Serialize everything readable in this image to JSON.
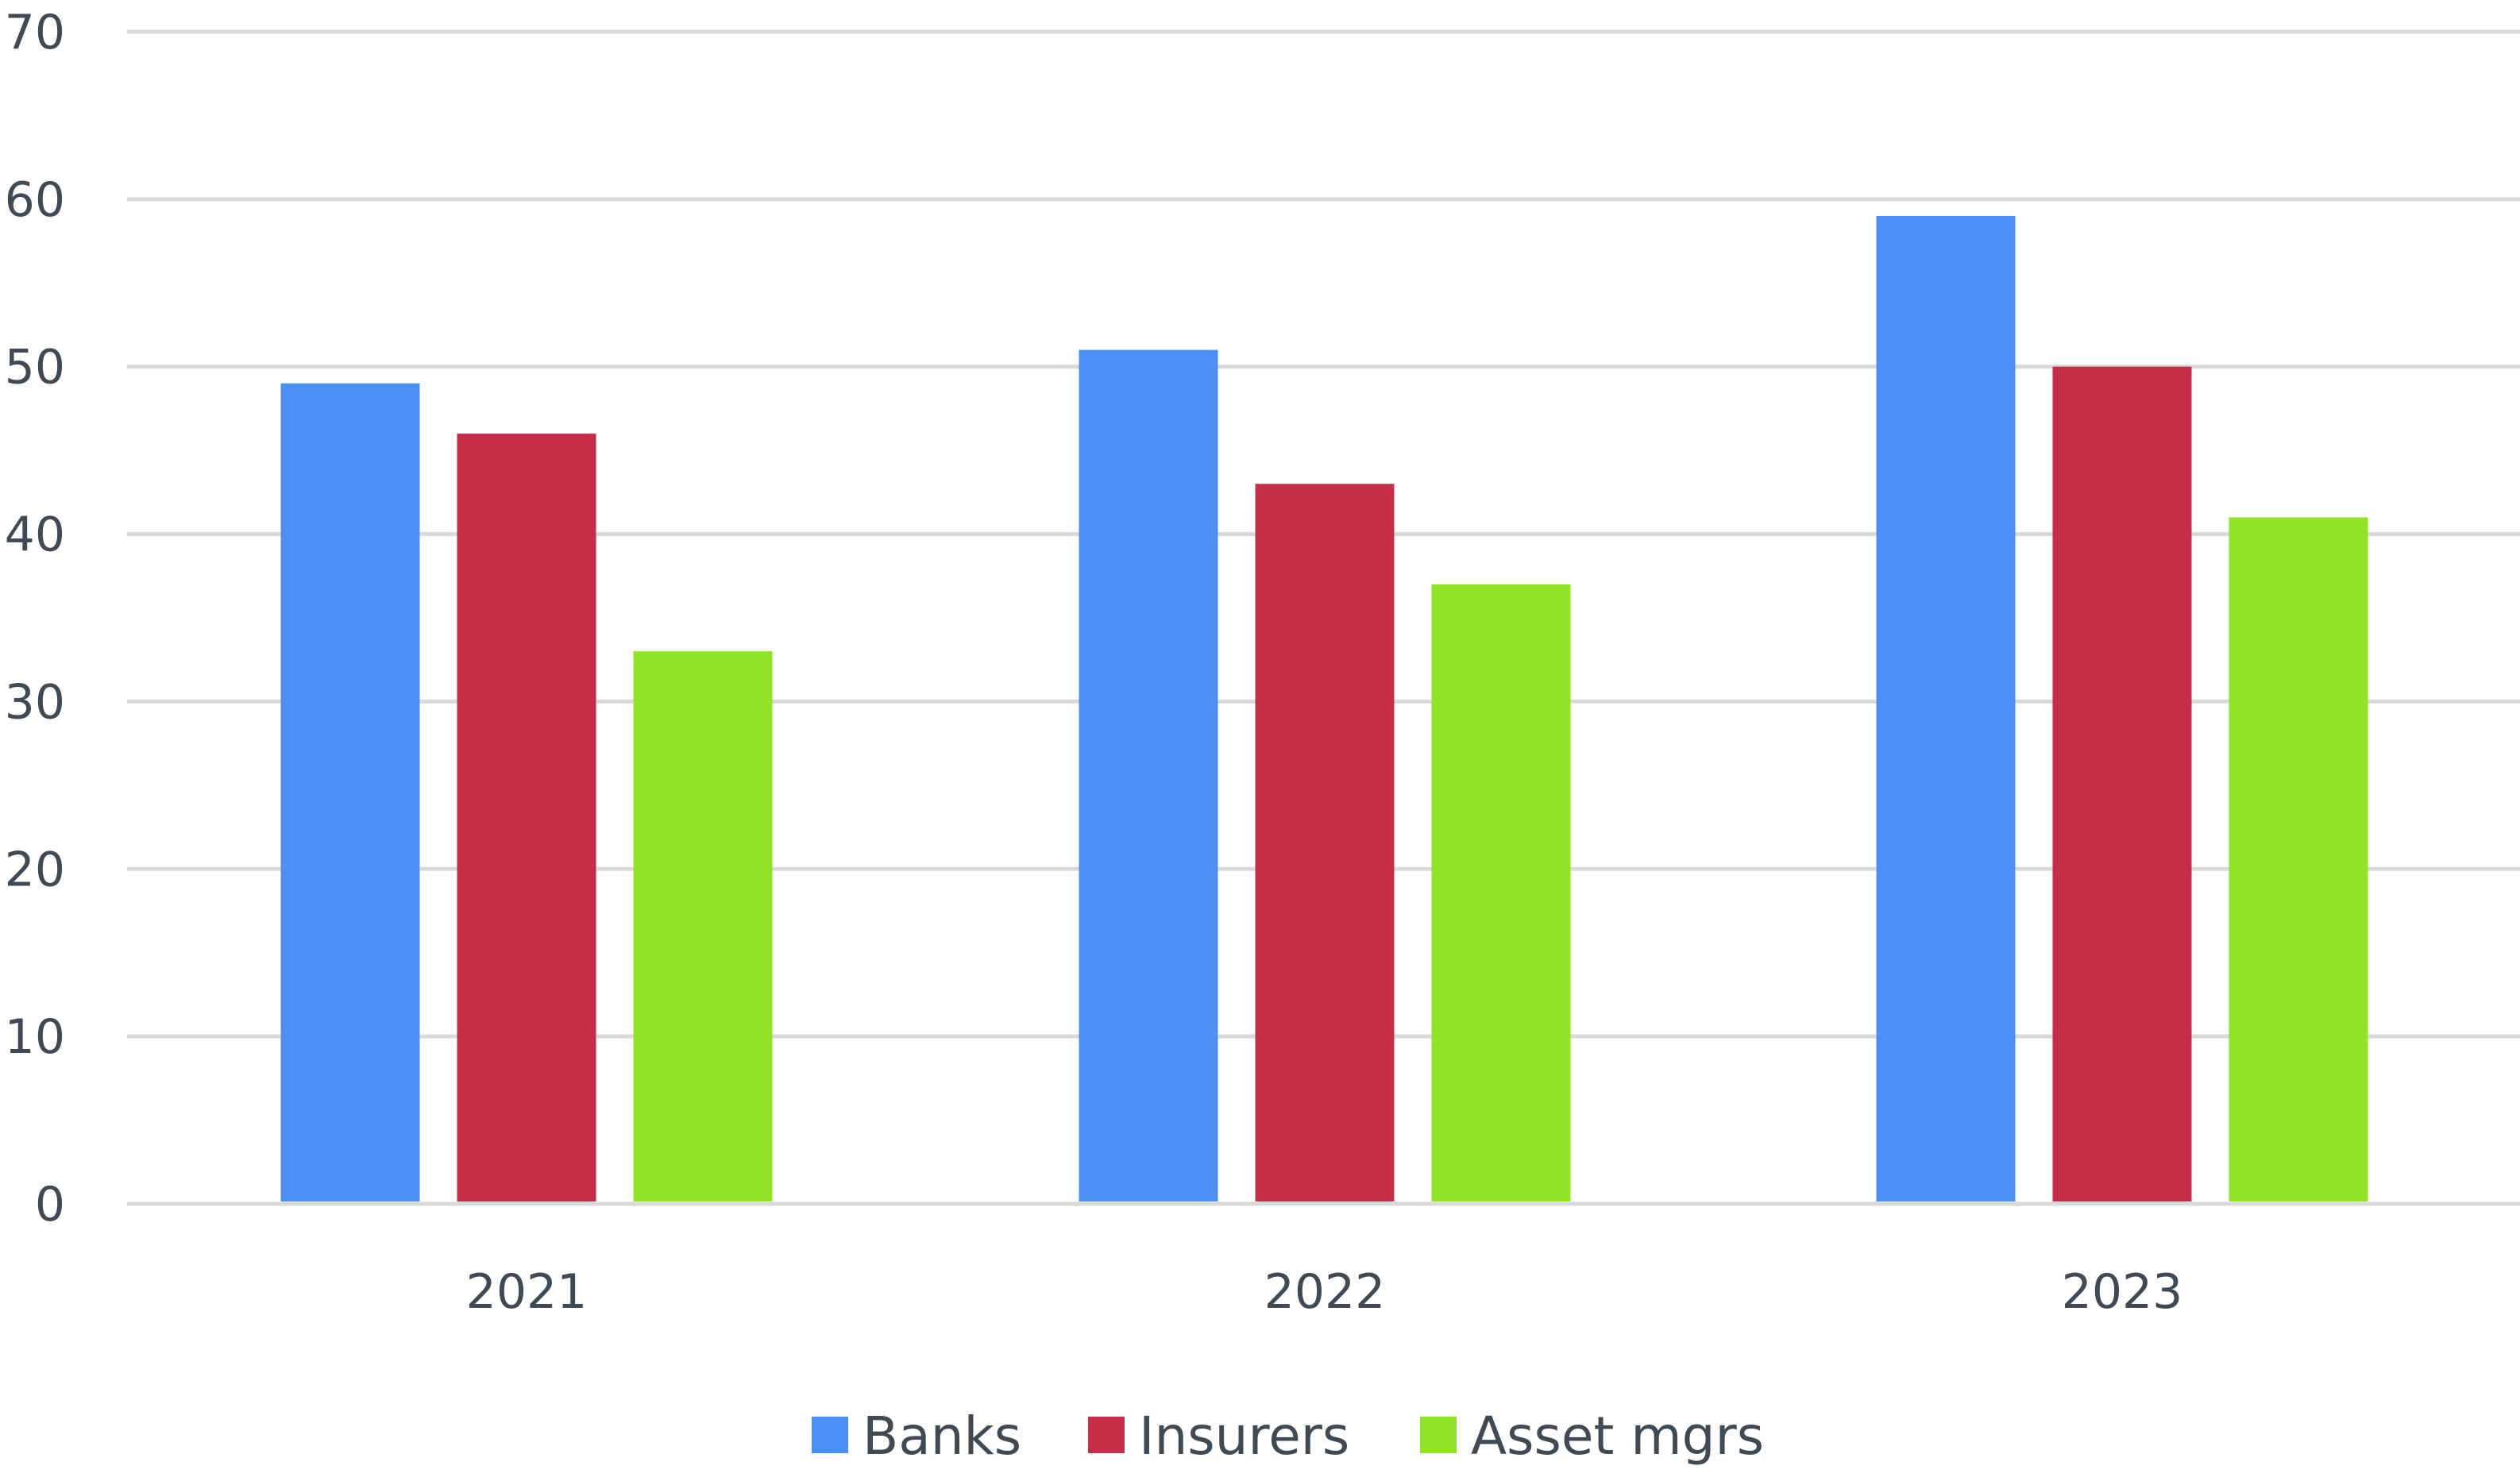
{
  "chart_data": {
    "type": "bar",
    "categories": [
      "2021",
      "2022",
      "2023"
    ],
    "series": [
      {
        "name": "Banks",
        "color": "#4a8ff5",
        "values": [
          49,
          51,
          59
        ]
      },
      {
        "name": "Insurers",
        "color": "#c52e48",
        "values": [
          46,
          43,
          50
        ]
      },
      {
        "name": "Asset mgrs",
        "color": "#92e228",
        "values": [
          33,
          37,
          41
        ]
      }
    ],
    "ylim": [
      0,
      70
    ],
    "yticks": [
      0,
      10,
      20,
      30,
      40,
      50,
      60,
      70
    ],
    "grid": true,
    "legend_position": "bottom"
  }
}
